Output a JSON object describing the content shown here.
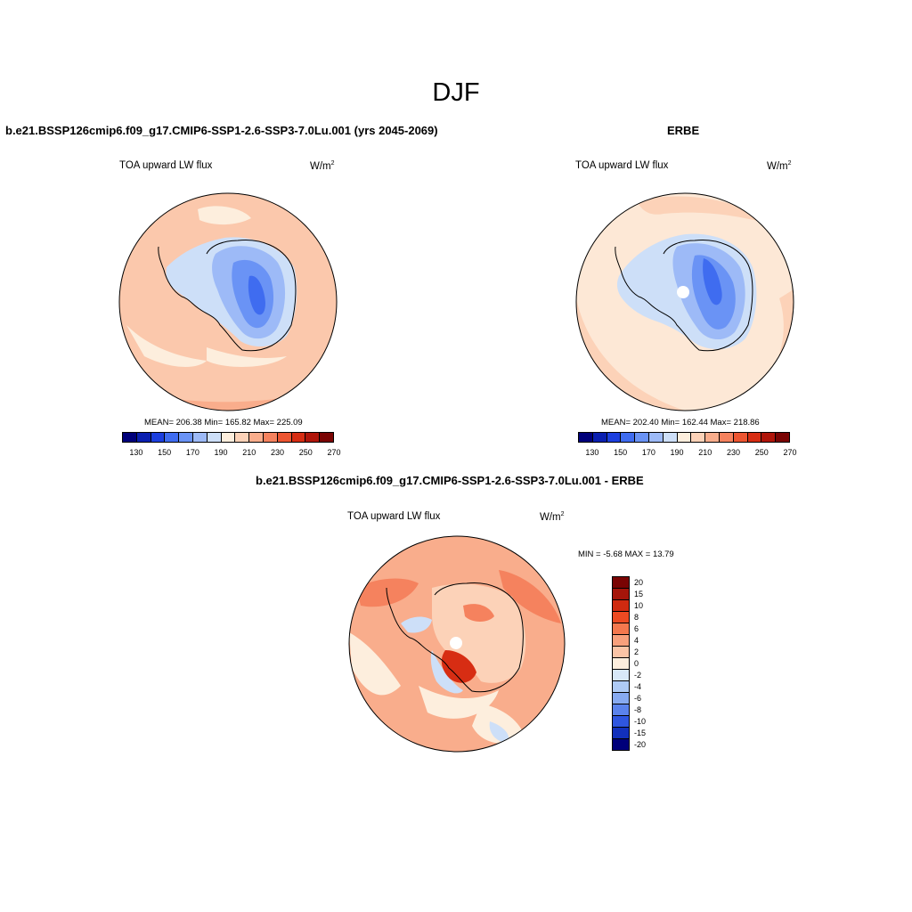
{
  "main_title": "DJF",
  "panels": [
    {
      "title": "b.e21.BSSP126cmip6.f09_g17.CMIP6-SSP1-2.6-SSP3-7.0Lu.001 (yrs 2045-2069)",
      "variable": "TOA upward LW flux",
      "units": "W/m",
      "units_sup": "2",
      "stats": "MEAN= 206.38  Min= 165.82  Max= 225.09"
    },
    {
      "title": "ERBE",
      "variable": "TOA upward LW flux",
      "units": "W/m",
      "units_sup": "2",
      "stats": "MEAN= 202.40  Min= 162.44  Max= 218.86"
    },
    {
      "title": "b.e21.BSSP126cmip6.f09_g17.CMIP6-SSP1-2.6-SSP3-7.0Lu.001 - ERBE",
      "variable": "TOA upward LW flux",
      "units": "W/m",
      "units_sup": "2",
      "minmax": "MIN =  -5.68 MAX =  13.79"
    }
  ],
  "field_colorbar": {
    "colors": [
      "#00007a",
      "#0a1fb0",
      "#1c3fdf",
      "#3f6cf0",
      "#6a93f5",
      "#9dbaf7",
      "#cddff8",
      "#fdeedd",
      "#fcd2b8",
      "#f9ad8c",
      "#f5825e",
      "#ec5531",
      "#d72d13",
      "#b0150a",
      "#7a0403"
    ],
    "labels": [
      "130",
      "150",
      "170",
      "190",
      "210",
      "230",
      "250",
      "270"
    ]
  },
  "diff_colorbar": {
    "colors": [
      "#7a0403",
      "#a5150a",
      "#cf2a10",
      "#ec4a22",
      "#f4784e",
      "#f8a07c",
      "#fbc4a6",
      "#fdeedd",
      "#d8e8f8",
      "#aecaf5",
      "#87aaf1",
      "#5b83ec",
      "#2f56e0",
      "#1230bc",
      "#00007a"
    ],
    "labels": [
      "20",
      "15",
      "10",
      "8",
      "6",
      "4",
      "2",
      "0",
      "-2",
      "-4",
      "-6",
      "-8",
      "-10",
      "-15",
      "-20"
    ]
  },
  "map_colors": {
    "ocean_field": "#fbc8ac",
    "ocean_erbe": "#fde8d6",
    "ice_outer": "#cddff8",
    "ice_mid": "#9dbaf7",
    "ice_inner": "#6a93f5",
    "ice_core": "#3f6cf0",
    "diff_base": "#f9ad8c",
    "diff_warm": "#f5825e",
    "diff_hot": "#ec5531",
    "diff_light": "#fdeedd",
    "diff_cool": "#cddff8"
  }
}
